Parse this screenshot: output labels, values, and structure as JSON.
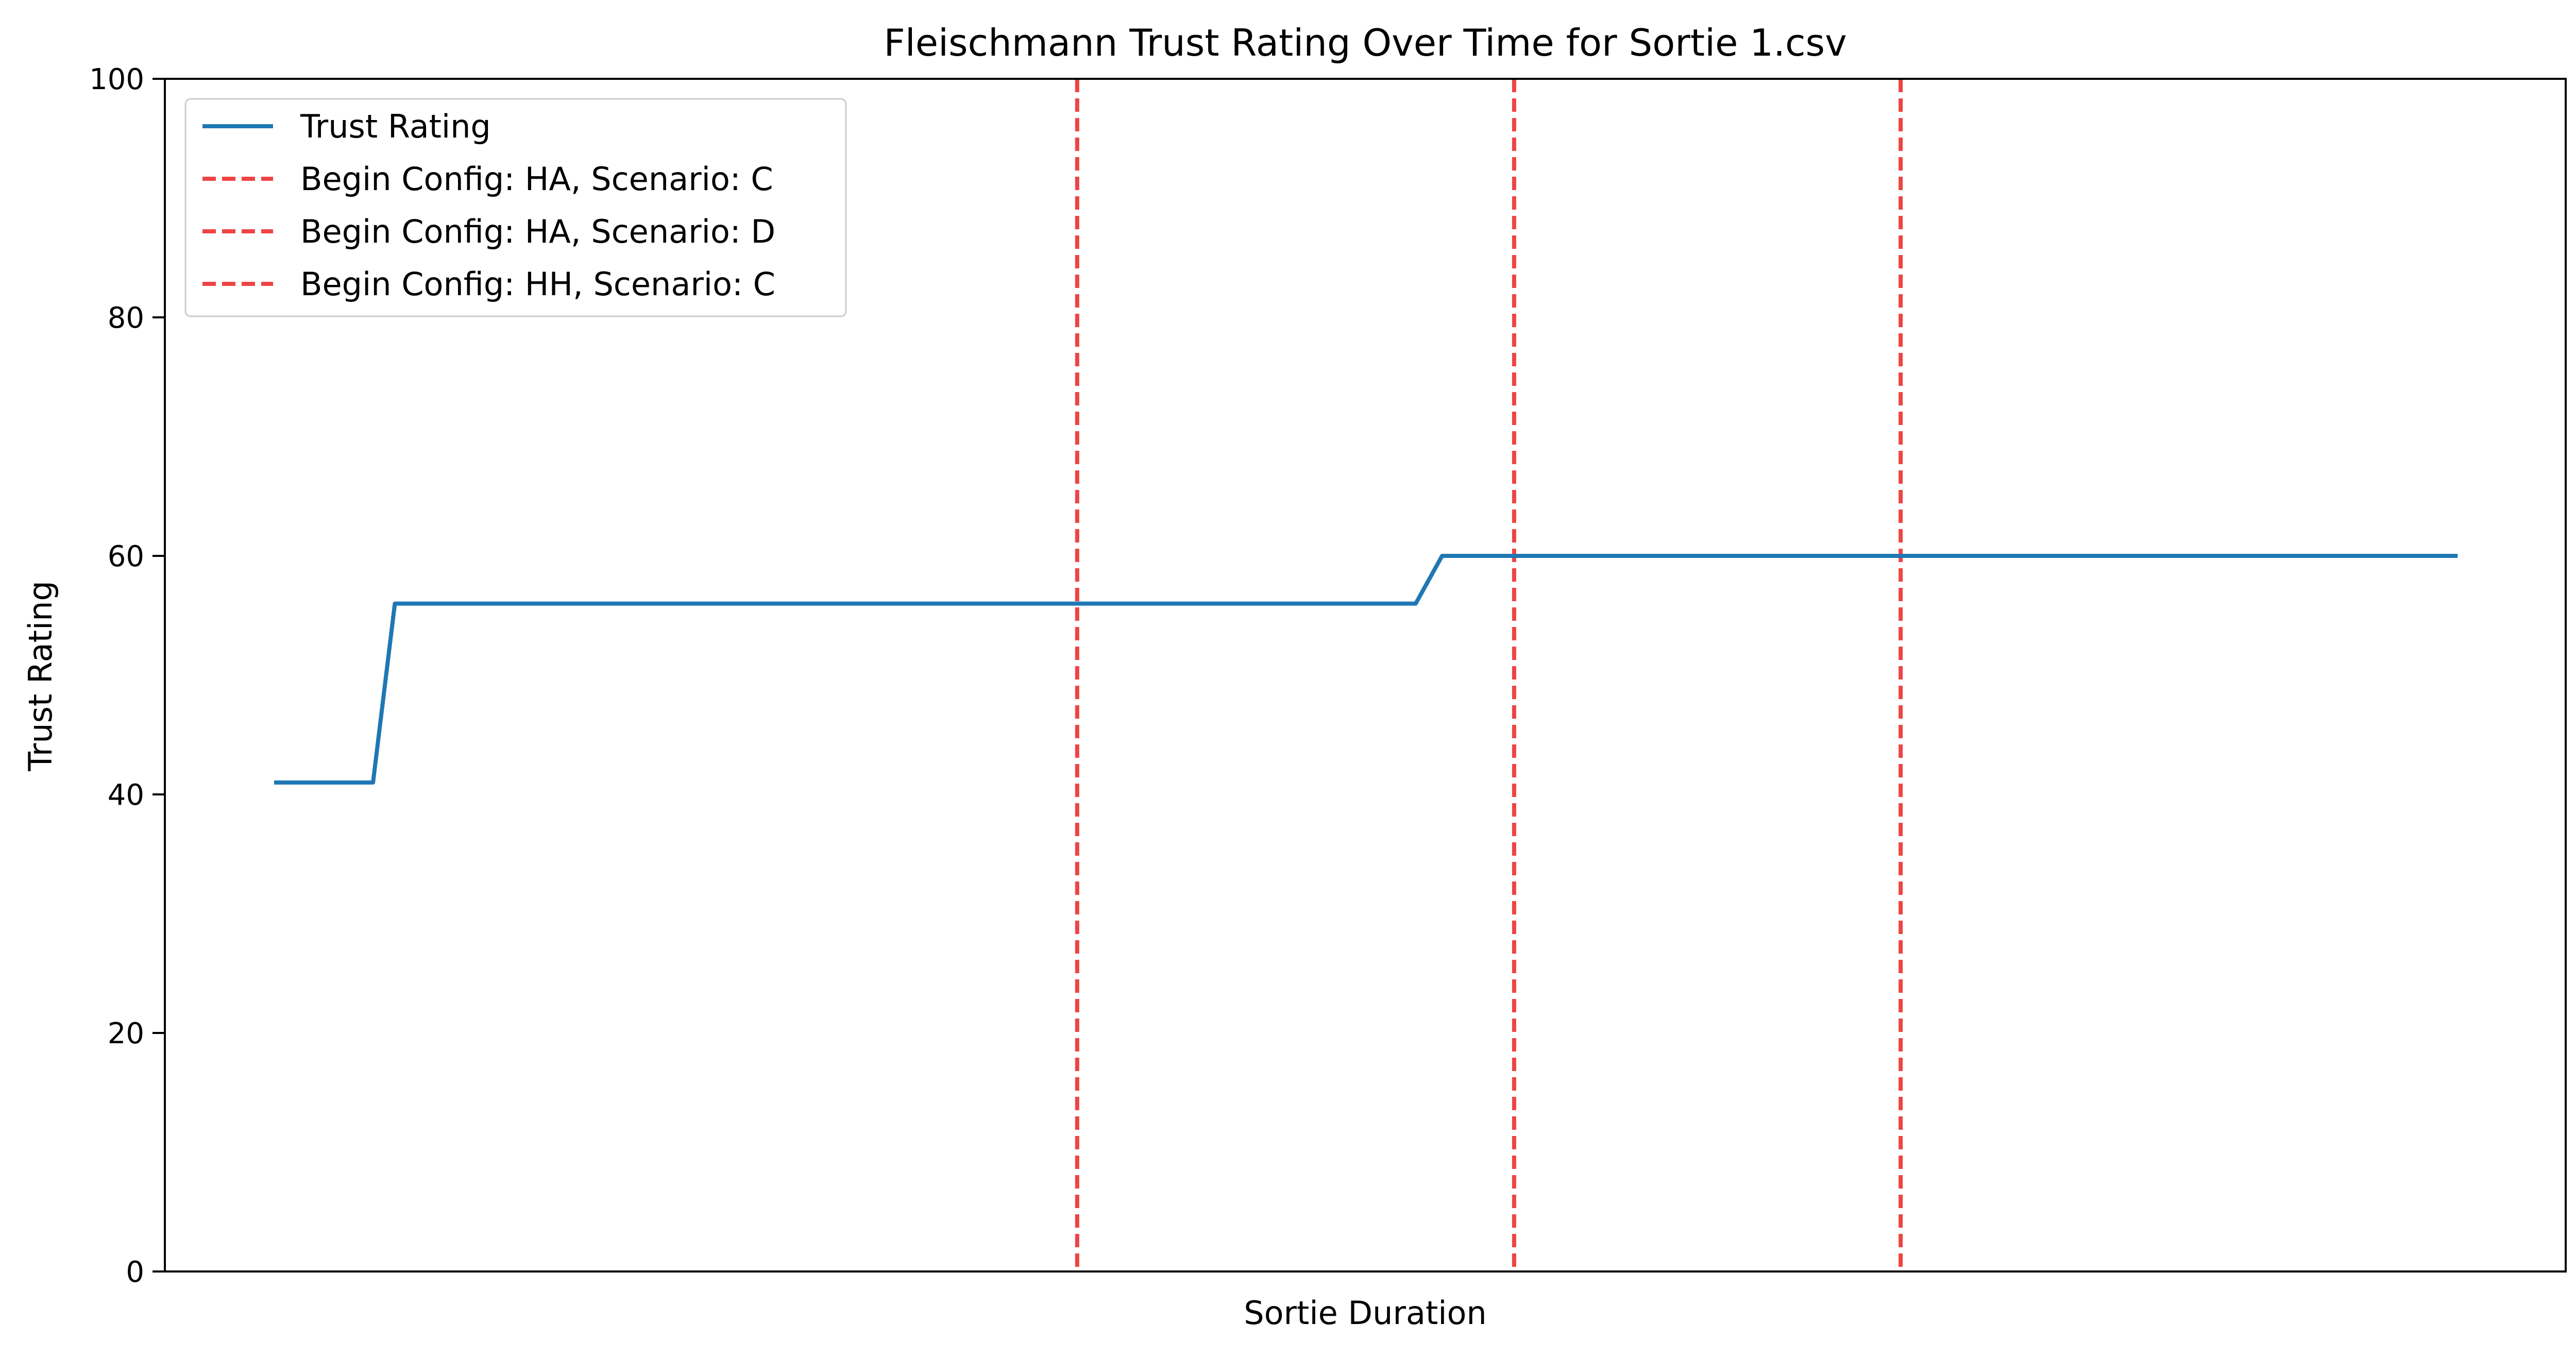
{
  "chart_data": {
    "type": "line",
    "title": "Fleischmann Trust Rating Over Time for Sortie 1.csv",
    "xlabel": "Sortie Duration",
    "ylabel": "Trust Rating",
    "xlim": [
      0,
      100
    ],
    "ylim": [
      0,
      100
    ],
    "yticks": [
      0,
      20,
      40,
      60,
      80,
      100
    ],
    "grid": false,
    "legend_position": "top-left",
    "series": [
      {
        "name": "Trust Rating",
        "color": "#1f77b4",
        "style": "solid",
        "x": [
          4.55,
          8.67,
          9.58,
          52.1,
          53.2,
          95.5
        ],
        "y": [
          41,
          41,
          56,
          56,
          60,
          60
        ]
      }
    ],
    "vlines": [
      {
        "name": "Begin Config: HA, Scenario: C",
        "x": 38.0,
        "color": "#ee4444",
        "style": "dashed"
      },
      {
        "name": "Begin Config: HA, Scenario: D",
        "x": 56.2,
        "color": "#ee4444",
        "style": "dashed"
      },
      {
        "name": "Begin Config: HH, Scenario: C",
        "x": 72.3,
        "color": "#ee4444",
        "style": "dashed"
      }
    ]
  }
}
